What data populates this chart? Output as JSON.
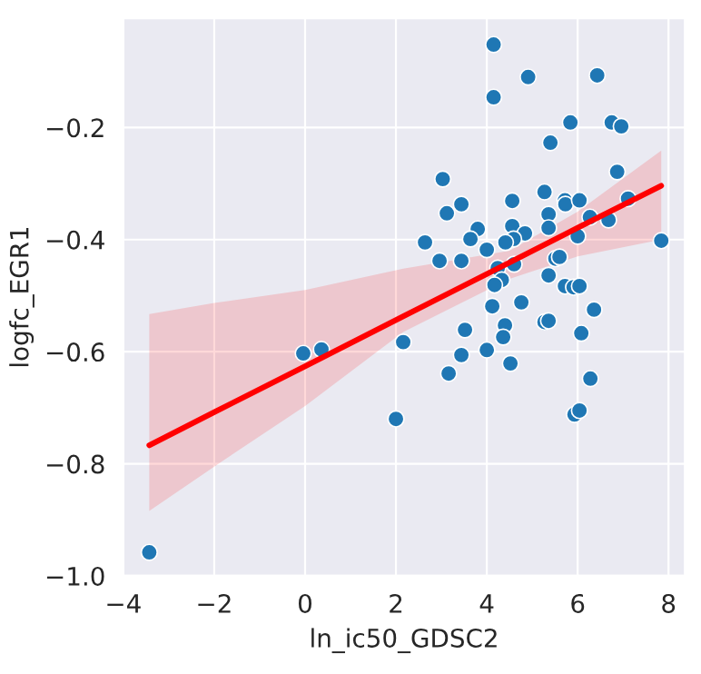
{
  "chart_data": {
    "type": "scatter",
    "xlabel": "ln_ic50_GDSC2",
    "ylabel": "logfc_EGR1",
    "xlim": [
      -4,
      8.36
    ],
    "ylim": [
      -1.0,
      -0.005
    ],
    "xticks": [
      {
        "value": -4,
        "label": "−4"
      },
      {
        "value": -2,
        "label": "−2"
      },
      0,
      2,
      4,
      6,
      8
    ],
    "yticks": [
      {
        "value": -1.0,
        "label": "−1.0"
      },
      {
        "value": -0.8,
        "label": "−0.8"
      },
      {
        "value": -0.6,
        "label": "−0.6"
      },
      {
        "value": -0.4,
        "label": "−0.4"
      },
      {
        "value": -0.2,
        "label": "−0.2"
      }
    ],
    "grid": true,
    "series": [
      {
        "marker": "circle",
        "color": "#1f77b4",
        "x": [
          -3.43,
          -0.04,
          0.36,
          2.0,
          2.16,
          4.15,
          4.15,
          4.91,
          6.43,
          5.84,
          6.75,
          6.96,
          5.4,
          6.87,
          3.03,
          5.27,
          4.56,
          3.44,
          3.12,
          5.72,
          5.73,
          6.04,
          5.36,
          7.11,
          6.27,
          6.68,
          4.56,
          3.8,
          5.36,
          4.84,
          3.64,
          4.59,
          4.41,
          6.0,
          2.64,
          7.84,
          4.0,
          2.96,
          3.44,
          5.51,
          5.6,
          4.6,
          4.24,
          5.36,
          4.33,
          4.17,
          5.72,
          5.91,
          6.04,
          4.76,
          4.12,
          6.36,
          5.27,
          5.36,
          4.4,
          3.52,
          4.36,
          6.08,
          4.0,
          3.44,
          4.52,
          3.16,
          6.28,
          5.93,
          6.04
        ],
        "values": [
          -0.958,
          -0.603,
          -0.596,
          -0.72,
          -0.583,
          -0.052,
          -0.146,
          -0.11,
          -0.107,
          -0.191,
          -0.191,
          -0.198,
          -0.227,
          -0.279,
          -0.292,
          -0.315,
          -0.331,
          -0.337,
          -0.353,
          -0.33,
          -0.337,
          -0.33,
          -0.355,
          -0.327,
          -0.36,
          -0.365,
          -0.376,
          -0.381,
          -0.379,
          -0.389,
          -0.399,
          -0.399,
          -0.405,
          -0.394,
          -0.405,
          -0.402,
          -0.418,
          -0.438,
          -0.438,
          -0.434,
          -0.431,
          -0.444,
          -0.451,
          -0.464,
          -0.472,
          -0.481,
          -0.483,
          -0.485,
          -0.483,
          -0.512,
          -0.519,
          -0.525,
          -0.547,
          -0.545,
          -0.553,
          -0.561,
          -0.574,
          -0.567,
          -0.597,
          -0.606,
          -0.621,
          -0.639,
          -0.648,
          -0.712,
          -0.705
        ]
      },
      {
        "type": "line",
        "color": "#ff0000",
        "x": [
          -3.43,
          -2,
          0,
          2.16,
          4.5,
          6,
          7.84
        ],
        "values": [
          -0.767,
          -0.708,
          -0.626,
          -0.537,
          -0.441,
          -0.379,
          -0.304
        ],
        "lower": [
          -0.884,
          -0.805,
          -0.697,
          -0.565,
          -0.47,
          -0.43,
          -0.4
        ],
        "upper": [
          -0.533,
          -0.513,
          -0.49,
          -0.452,
          -0.42,
          -0.35,
          -0.241
        ]
      }
    ]
  }
}
